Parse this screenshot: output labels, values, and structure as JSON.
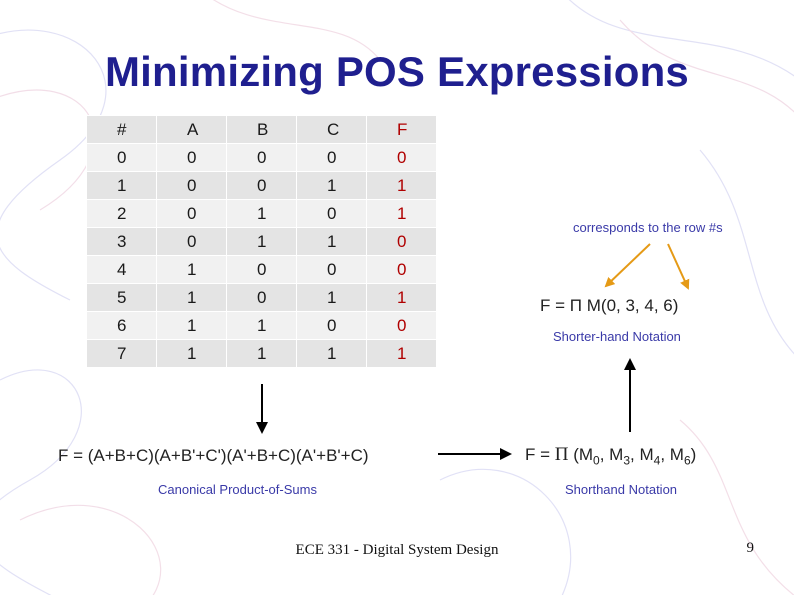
{
  "slide": {
    "title": "Minimizing POS Expressions",
    "footer": "ECE 331 - Digital System Design",
    "page_number": "9"
  },
  "truth_table": {
    "headers": [
      "#",
      "A",
      "B",
      "C",
      "F"
    ],
    "rows": [
      [
        "0",
        "0",
        "0",
        "0",
        "0"
      ],
      [
        "1",
        "0",
        "0",
        "1",
        "1"
      ],
      [
        "2",
        "0",
        "1",
        "0",
        "1"
      ],
      [
        "3",
        "0",
        "1",
        "1",
        "0"
      ],
      [
        "4",
        "1",
        "0",
        "0",
        "0"
      ],
      [
        "5",
        "1",
        "0",
        "1",
        "1"
      ],
      [
        "6",
        "1",
        "1",
        "0",
        "0"
      ],
      [
        "7",
        "1",
        "1",
        "1",
        "1"
      ]
    ]
  },
  "annotations": {
    "corresponds_note": "corresponds to the row #s",
    "shorter_hand_formula": "F = Π M(0, 3, 4, 6)",
    "shorter_hand_label": "Shorter-hand Notation",
    "canonical_formula": "F = (A+B+C)(A+B'+C')(A'+B+C)(A'+B'+C)",
    "canonical_label": "Canonical Product-of-Sums",
    "shorthand_formula": {
      "prefix": "F = ",
      "pi": "Π",
      "open": " (M",
      "terms": [
        {
          "sub": "0",
          "after": ", M"
        },
        {
          "sub": "3",
          "after": ", M"
        },
        {
          "sub": "4",
          "after": ", M"
        },
        {
          "sub": "6",
          "after": ")"
        }
      ]
    },
    "shorthand_label": "Shorthand Notation"
  },
  "colors": {
    "title": "#1f1f8f",
    "note_text": "#3a3aa8",
    "f_column": "#b00000",
    "arrow_orange": "#e59a16",
    "arrow_black": "#000000"
  }
}
